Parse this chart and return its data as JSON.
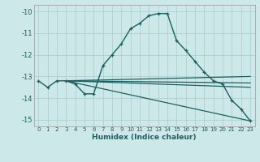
{
  "xlabel": "Humidex (Indice chaleur)",
  "bg_color": "#cde8e8",
  "line_color": "#1a6060",
  "grid_color": "#aacccc",
  "xlim": [
    -0.5,
    23.5
  ],
  "ylim": [
    -15.3,
    -9.7
  ],
  "yticks": [
    -15,
    -14,
    -13,
    -12,
    -11,
    -10
  ],
  "xticks": [
    0,
    1,
    2,
    3,
    4,
    5,
    6,
    7,
    8,
    9,
    10,
    11,
    12,
    13,
    14,
    15,
    16,
    17,
    18,
    19,
    20,
    21,
    22,
    23
  ],
  "line_main": {
    "x": [
      0,
      1,
      2,
      3,
      4,
      5,
      6,
      7,
      8,
      9,
      10,
      11,
      12,
      13,
      14,
      15,
      16,
      17,
      18,
      19,
      20,
      21,
      22,
      23
    ],
    "y": [
      -13.2,
      -13.5,
      -13.2,
      -13.2,
      -13.35,
      -13.8,
      -13.8,
      -12.5,
      -12.0,
      -11.5,
      -10.8,
      -10.55,
      -10.2,
      -10.1,
      -10.1,
      -11.35,
      -11.8,
      -12.3,
      -12.8,
      -13.2,
      -13.35,
      -14.1,
      -14.5,
      -15.05
    ]
  },
  "line_flat1": {
    "x": [
      3,
      23
    ],
    "y": [
      -13.2,
      -13.0
    ]
  },
  "line_flat2": {
    "x": [
      3,
      23
    ],
    "y": [
      -13.2,
      -13.3
    ]
  },
  "line_flat3": {
    "x": [
      3,
      23
    ],
    "y": [
      -13.2,
      -13.5
    ]
  },
  "line_diagonal": {
    "x": [
      3,
      23
    ],
    "y": [
      -13.2,
      -15.05
    ]
  }
}
